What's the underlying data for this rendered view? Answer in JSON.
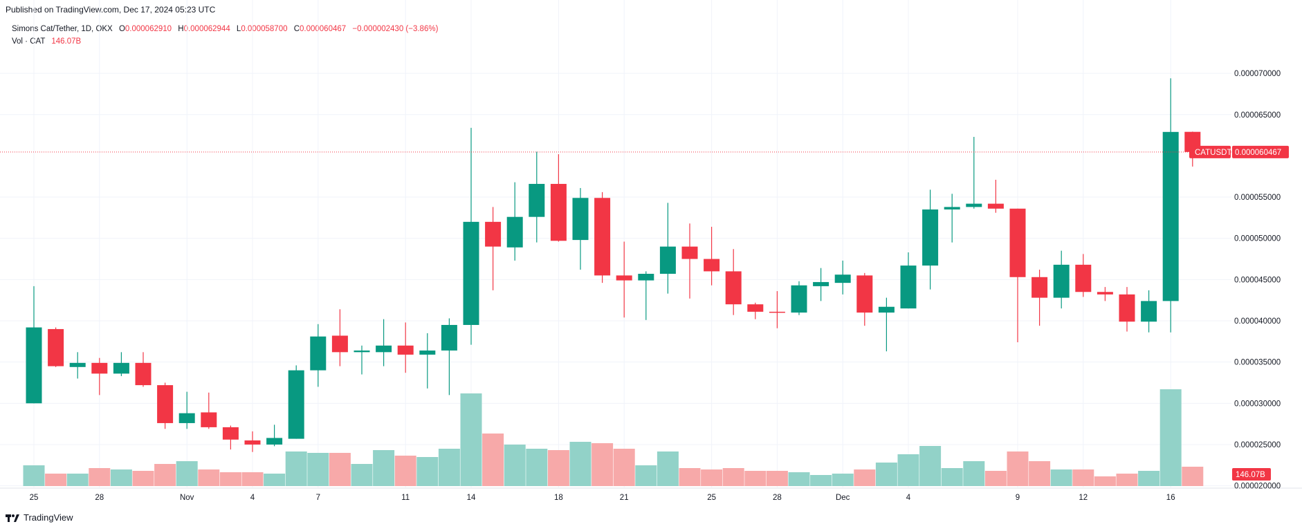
{
  "header": {
    "published": "Published on TradingView.com, Dec 17, 2024 05:23 UTC"
  },
  "legend": {
    "symbol": "Simons Cat/Tether, 1D, OKX",
    "o_label": "O",
    "o_value": "0.000062910",
    "h_label": "H",
    "h_value": "0.000062944",
    "l_label": "L",
    "l_value": "0.000058700",
    "c_label": "C",
    "c_value": "0.000060467",
    "change": "−0.000002430 (−3.86%)",
    "vol_label": "Vol · CAT",
    "vol_value": "146.07B"
  },
  "footer": {
    "brand": "TradingView"
  },
  "colors": {
    "up": "#089981",
    "down": "#f23645",
    "up_vol": "#92d2c8",
    "down_vol": "#f7a9a9",
    "grid": "#f0f3fa"
  },
  "chart_data": {
    "type": "candlestick",
    "price_axis": {
      "ticks": [
        7e-05,
        6.5e-05,
        5.5e-05,
        5e-05,
        4.5e-05,
        4e-05,
        3.5e-05,
        3e-05,
        2.5e-05,
        2e-05
      ],
      "tick_labels": [
        "0.000070000",
        "0.000065000",
        "0.000055000",
        "0.000050000",
        "0.000045000",
        "0.000040000",
        "0.000035000",
        "0.000030000",
        "0.000025000",
        "0.000020000"
      ],
      "range": [
        1.98e-05,
        7.42e-05
      ]
    },
    "x_axis": {
      "ticks": [
        {
          "index": 0,
          "label": "25"
        },
        {
          "index": 3,
          "label": "28"
        },
        {
          "index": 7,
          "label": "Nov"
        },
        {
          "index": 10,
          "label": "4"
        },
        {
          "index": 13,
          "label": "7"
        },
        {
          "index": 17,
          "label": "11"
        },
        {
          "index": 20,
          "label": "14"
        },
        {
          "index": 24,
          "label": "18"
        },
        {
          "index": 27,
          "label": "21"
        },
        {
          "index": 31,
          "label": "25"
        },
        {
          "index": 34,
          "label": "28"
        },
        {
          "index": 37,
          "label": "Dec"
        },
        {
          "index": 40,
          "label": "4"
        },
        {
          "index": 45,
          "label": "9"
        },
        {
          "index": 48,
          "label": "12"
        },
        {
          "index": 52,
          "label": "16"
        }
      ]
    },
    "last_price": {
      "symbol": "CATUSDT",
      "value": 6.0467e-05,
      "label": "0.000060467"
    },
    "last_volume_label": "146.07B",
    "candles": [
      {
        "o": 3.0,
        "h": 4.42,
        "l": 3.0,
        "c": 3.92,
        "v": 15
      },
      {
        "o": 3.9,
        "h": 3.92,
        "l": 3.44,
        "c": 3.45,
        "v": 9
      },
      {
        "o": 3.44,
        "h": 3.62,
        "l": 3.3,
        "c": 3.49,
        "v": 9
      },
      {
        "o": 3.49,
        "h": 3.55,
        "l": 3.1,
        "c": 3.36,
        "v": 13
      },
      {
        "o": 3.36,
        "h": 3.62,
        "l": 3.33,
        "c": 3.49,
        "v": 12
      },
      {
        "o": 3.49,
        "h": 3.62,
        "l": 3.2,
        "c": 3.22,
        "v": 11
      },
      {
        "o": 3.22,
        "h": 3.25,
        "l": 2.69,
        "c": 2.76,
        "v": 16
      },
      {
        "o": 2.76,
        "h": 3.14,
        "l": 2.69,
        "c": 2.88,
        "v": 18
      },
      {
        "o": 2.89,
        "h": 3.13,
        "l": 2.69,
        "c": 2.71,
        "v": 12
      },
      {
        "o": 2.71,
        "h": 2.73,
        "l": 2.44,
        "c": 2.56,
        "v": 10
      },
      {
        "o": 2.55,
        "h": 2.66,
        "l": 2.41,
        "c": 2.5,
        "v": 10
      },
      {
        "o": 2.5,
        "h": 2.74,
        "l": 2.48,
        "c": 2.58,
        "v": 9
      },
      {
        "o": 2.57,
        "h": 3.46,
        "l": 2.57,
        "c": 3.4,
        "v": 25
      },
      {
        "o": 3.4,
        "h": 3.96,
        "l": 3.2,
        "c": 3.81,
        "v": 24
      },
      {
        "o": 3.82,
        "h": 4.14,
        "l": 3.45,
        "c": 3.62,
        "v": 24
      },
      {
        "o": 3.62,
        "h": 3.7,
        "l": 3.35,
        "c": 3.64,
        "v": 16
      },
      {
        "o": 3.62,
        "h": 4.02,
        "l": 3.45,
        "c": 3.7,
        "v": 26
      },
      {
        "o": 3.7,
        "h": 3.98,
        "l": 3.37,
        "c": 3.59,
        "v": 22
      },
      {
        "o": 3.59,
        "h": 3.85,
        "l": 3.18,
        "c": 3.64,
        "v": 21
      },
      {
        "o": 3.64,
        "h": 4.03,
        "l": 3.1,
        "c": 3.95,
        "v": 27
      },
      {
        "o": 3.95,
        "h": 6.34,
        "l": 3.71,
        "c": 5.2,
        "v": 67
      },
      {
        "o": 5.2,
        "h": 5.38,
        "l": 4.37,
        "c": 4.9,
        "v": 38
      },
      {
        "o": 4.89,
        "h": 5.68,
        "l": 4.73,
        "c": 5.26,
        "v": 30
      },
      {
        "o": 5.26,
        "h": 6.05,
        "l": 4.95,
        "c": 5.66,
        "v": 27
      },
      {
        "o": 5.66,
        "h": 6.02,
        "l": 4.96,
        "c": 4.97,
        "v": 26
      },
      {
        "o": 4.98,
        "h": 5.61,
        "l": 4.62,
        "c": 5.49,
        "v": 32
      },
      {
        "o": 5.49,
        "h": 5.56,
        "l": 4.46,
        "c": 4.55,
        "v": 31
      },
      {
        "o": 4.55,
        "h": 4.96,
        "l": 4.04,
        "c": 4.49,
        "v": 27
      },
      {
        "o": 4.49,
        "h": 4.6,
        "l": 4.01,
        "c": 4.57,
        "v": 15
      },
      {
        "o": 4.57,
        "h": 5.43,
        "l": 4.33,
        "c": 4.9,
        "v": 25
      },
      {
        "o": 4.9,
        "h": 5.18,
        "l": 4.27,
        "c": 4.75,
        "v": 13
      },
      {
        "o": 4.75,
        "h": 5.14,
        "l": 4.43,
        "c": 4.6,
        "v": 12
      },
      {
        "o": 4.6,
        "h": 4.87,
        "l": 4.07,
        "c": 4.2,
        "v": 13
      },
      {
        "o": 4.2,
        "h": 4.22,
        "l": 4.02,
        "c": 4.11,
        "v": 11
      },
      {
        "o": 4.11,
        "h": 4.36,
        "l": 3.91,
        "c": 4.1,
        "v": 11
      },
      {
        "o": 4.1,
        "h": 4.48,
        "l": 4.07,
        "c": 4.43,
        "v": 10
      },
      {
        "o": 4.42,
        "h": 4.64,
        "l": 4.24,
        "c": 4.47,
        "v": 8
      },
      {
        "o": 4.46,
        "h": 4.73,
        "l": 4.32,
        "c": 4.56,
        "v": 9
      },
      {
        "o": 4.55,
        "h": 4.58,
        "l": 3.94,
        "c": 4.1,
        "v": 12
      },
      {
        "o": 4.1,
        "h": 4.28,
        "l": 3.63,
        "c": 4.17,
        "v": 17
      },
      {
        "o": 4.15,
        "h": 4.83,
        "l": 4.15,
        "c": 4.67,
        "v": 23
      },
      {
        "o": 4.67,
        "h": 5.59,
        "l": 4.38,
        "c": 5.35,
        "v": 29
      },
      {
        "o": 5.35,
        "h": 5.54,
        "l": 4.95,
        "c": 5.38,
        "v": 13
      },
      {
        "o": 5.38,
        "h": 6.23,
        "l": 5.36,
        "c": 5.42,
        "v": 18
      },
      {
        "o": 5.42,
        "h": 5.71,
        "l": 5.31,
        "c": 5.36,
        "v": 11
      },
      {
        "o": 5.36,
        "h": 5.36,
        "l": 3.74,
        "c": 4.53,
        "v": 25
      },
      {
        "o": 4.53,
        "h": 4.62,
        "l": 3.94,
        "c": 4.28,
        "v": 18
      },
      {
        "o": 4.28,
        "h": 4.85,
        "l": 4.15,
        "c": 4.68,
        "v": 12
      },
      {
        "o": 4.68,
        "h": 4.81,
        "l": 4.29,
        "c": 4.35,
        "v": 12
      },
      {
        "o": 4.35,
        "h": 4.41,
        "l": 4.24,
        "c": 4.32,
        "v": 7
      },
      {
        "o": 4.32,
        "h": 4.41,
        "l": 3.87,
        "c": 3.99,
        "v": 9
      },
      {
        "o": 3.99,
        "h": 4.37,
        "l": 3.86,
        "c": 4.24,
        "v": 11
      },
      {
        "o": 4.24,
        "h": 6.94,
        "l": 3.86,
        "c": 6.29,
        "v": 70
      },
      {
        "o": 6.291,
        "h": 6.294,
        "l": 5.87,
        "c": 6.047,
        "v": 14
      }
    ],
    "candles_note_units": "prices above are multiplied by 1e-5; volumes are relative bar heights on the volume pane"
  }
}
